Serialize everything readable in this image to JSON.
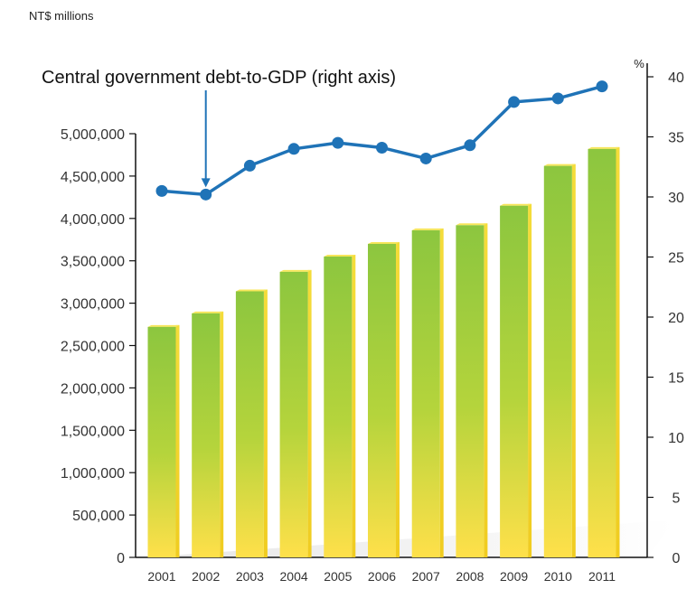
{
  "chart_data": {
    "type": "bar",
    "left_axis_unit": "NT$ millions",
    "right_axis_unit": "%",
    "categories": [
      "2001",
      "2002",
      "2003",
      "2004",
      "2005",
      "2006",
      "2007",
      "2008",
      "2009",
      "2010",
      "2011"
    ],
    "series": [
      {
        "type": "bar",
        "axis": "left",
        "values": [
          2720000,
          2880000,
          3140000,
          3370000,
          3550000,
          3700000,
          3860000,
          3920000,
          4150000,
          4620000,
          4820000
        ]
      },
      {
        "name": "Central government debt-to-GDP (right axis)",
        "type": "line",
        "axis": "right",
        "values": [
          30.5,
          30.2,
          32.6,
          34.0,
          34.5,
          34.1,
          33.2,
          34.3,
          37.9,
          38.2,
          39.2
        ]
      }
    ],
    "left_axis": {
      "ylim": [
        0,
        5000000
      ],
      "ticks": [
        "0",
        "500,000",
        "1,000,000",
        "1,500,000",
        "2,000,000",
        "2,500,000",
        "3,000,000",
        "3,500,000",
        "4,000,000",
        "4,500,000",
        "5,000,000"
      ]
    },
    "right_axis": {
      "ylim": [
        0,
        40
      ],
      "ticks": [
        "0",
        "5",
        "10",
        "15",
        "20",
        "25",
        "30",
        "35",
        "40"
      ]
    },
    "annotation": {
      "text": "Central government debt-to-GDP (right axis)",
      "points_to": "2002"
    },
    "grid": false,
    "colors": {
      "bar_top": "#8cc63f",
      "bar_bottom": "#ffe04a",
      "bar_side": "#f0d020",
      "line": "#1f73b7",
      "arrow": "#1f73b7",
      "axis": "#111111",
      "floor_shadow": "#d9d9d9"
    }
  }
}
